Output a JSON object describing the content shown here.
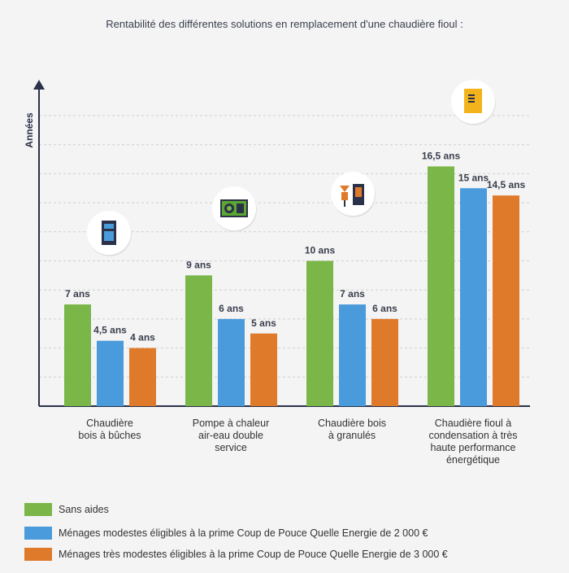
{
  "title": "Rentabilité des différentes solutions en remplacement d'une chaudière fioul :",
  "chart_data": {
    "type": "bar",
    "ylabel": "Années",
    "xlabel": "",
    "ylim": [
      0,
      20
    ],
    "grid": true,
    "legend_position": "bottom-left",
    "categories": [
      "Chaudière bois à bûches",
      "Pompe à chaleur air-eau double service",
      "Chaudière bois à granulés",
      "Chaudière fioul à condensation à très haute performance énergétique"
    ],
    "category_icons": [
      "wood-log-boiler-icon",
      "heat-pump-icon",
      "pellet-boiler-icon",
      "oil-boiler-icon"
    ],
    "series": [
      {
        "name": "Sans aides",
        "color": "#7ab648",
        "values": [
          7,
          9,
          10,
          16.5
        ],
        "labels": [
          "7 ans",
          "9 ans",
          "10 ans",
          "16,5 ans"
        ]
      },
      {
        "name": "Ménages modestes éligibles à la prime Coup de Pouce Quelle Energie de 2 000 €",
        "color": "#4a9bdb",
        "values": [
          4.5,
          6,
          7,
          15
        ],
        "labels": [
          "4,5 ans",
          "6 ans",
          "7 ans",
          "15 ans"
        ]
      },
      {
        "name": "Ménages très modestes éligibles à la prime Coup de Pouce Quelle Energie de 3 000 €",
        "color": "#e07a2b",
        "values": [
          4,
          5,
          6,
          14.5
        ],
        "labels": [
          "4 ans",
          "5 ans",
          "6 ans",
          "14,5 ans"
        ]
      }
    ]
  }
}
